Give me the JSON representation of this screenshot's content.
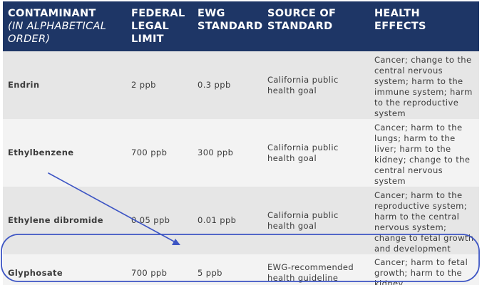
{
  "headers": {
    "contaminant": "CONTAMINANT",
    "contaminant_sub": "(IN ALPHABETICAL ORDER)",
    "federal": "FEDERAL LEGAL LIMIT",
    "ewg": "EWG STANDARD",
    "source": "SOURCE OF STANDARD",
    "health": "HEALTH EFFECTS"
  },
  "rows": [
    {
      "name": "Endrin",
      "federal": "2 ppb",
      "ewg": "0.3 ppb",
      "source": "California public health goal",
      "effects": "Cancer; change to the central nervous system; harm to the immune system; harm to the reproductive system"
    },
    {
      "name": "Ethylbenzene",
      "federal": "700 ppb",
      "ewg": "300 ppb",
      "source": "California public health goal",
      "effects": "Cancer; harm to the lungs; harm to the liver; harm to the kidney; change to the central nervous system"
    },
    {
      "name": "Ethylene dibromide",
      "federal": "0.05 ppb",
      "ewg": "0.01 ppb",
      "source": "California public health goal",
      "effects": "Cancer; harm to the reproductive system; harm to the central nervous system; change to fetal growth and development"
    },
    {
      "name": "Glyphosate",
      "federal": "700 ppb",
      "ewg": "5 ppb",
      "source": "EWG-recommended health guideline",
      "effects": "Cancer; harm to fetal growth; harm to the kidney"
    }
  ],
  "annotation_color": "#3d55c4"
}
